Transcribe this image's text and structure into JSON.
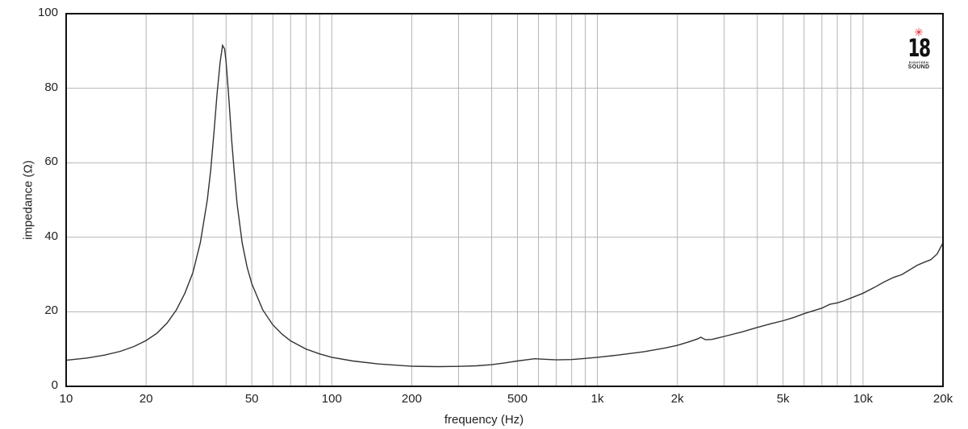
{
  "chart_data": {
    "type": "line",
    "title": "",
    "xlabel": "frequency (Hz)",
    "ylabel": "impedance (Ω)",
    "xscale": "log",
    "xlim": [
      10,
      20000
    ],
    "ylim": [
      0,
      100
    ],
    "grid": true,
    "legend": null,
    "x_ticks": [
      {
        "value": 10,
        "label": "10"
      },
      {
        "value": 20,
        "label": "20"
      },
      {
        "value": 50,
        "label": "50"
      },
      {
        "value": 100,
        "label": "100"
      },
      {
        "value": 200,
        "label": "200"
      },
      {
        "value": 500,
        "label": "500"
      },
      {
        "value": 1000,
        "label": "1k"
      },
      {
        "value": 2000,
        "label": "2k"
      },
      {
        "value": 5000,
        "label": "5k"
      },
      {
        "value": 10000,
        "label": "10k"
      },
      {
        "value": 20000,
        "label": "20k"
      }
    ],
    "x_minor_gridlines": [
      30,
      40,
      60,
      70,
      80,
      90,
      300,
      400,
      600,
      700,
      800,
      900,
      3000,
      4000,
      6000,
      7000,
      8000,
      9000
    ],
    "y_ticks": [
      {
        "value": 0,
        "label": "0"
      },
      {
        "value": 20,
        "label": "20"
      },
      {
        "value": 40,
        "label": "40"
      },
      {
        "value": 60,
        "label": "60"
      },
      {
        "value": 80,
        "label": "80"
      },
      {
        "value": 100,
        "label": "100"
      }
    ],
    "series": [
      {
        "name": "impedance",
        "color": "#333333",
        "x": [
          10,
          12,
          14,
          16,
          18,
          20,
          22,
          24,
          26,
          28,
          30,
          32,
          34,
          35,
          36,
          37,
          38,
          38.8,
          39.5,
          40,
          41,
          42,
          43,
          44,
          46,
          48,
          50,
          55,
          60,
          65,
          70,
          80,
          90,
          100,
          120,
          150,
          200,
          250,
          300,
          350,
          400,
          450,
          500,
          550,
          580,
          620,
          700,
          800,
          900,
          1000,
          1200,
          1500,
          1800,
          2000,
          2200,
          2400,
          2450,
          2550,
          2700,
          3000,
          3500,
          4000,
          4500,
          5000,
          5500,
          6000,
          7000,
          7500,
          8000,
          8500,
          9000,
          10000,
          11000,
          12000,
          13000,
          14000,
          15000,
          16000,
          17000,
          18000,
          19000,
          20000
        ],
        "values": [
          7.0,
          7.6,
          8.4,
          9.4,
          10.7,
          12.3,
          14.3,
          17.0,
          20.5,
          25.0,
          30.5,
          38.5,
          50.0,
          58.0,
          68.0,
          78.5,
          87.0,
          91.5,
          90.5,
          87.0,
          77.0,
          66.0,
          57.0,
          49.0,
          38.5,
          32.0,
          27.5,
          20.5,
          16.5,
          14.0,
          12.2,
          10.0,
          8.7,
          7.8,
          6.8,
          6.0,
          5.4,
          5.3,
          5.35,
          5.5,
          5.8,
          6.3,
          6.8,
          7.2,
          7.4,
          7.3,
          7.1,
          7.2,
          7.5,
          7.8,
          8.4,
          9.3,
          10.3,
          11.0,
          11.9,
          12.8,
          13.2,
          12.5,
          12.6,
          13.4,
          14.6,
          15.8,
          16.8,
          17.6,
          18.5,
          19.5,
          21.0,
          22.0,
          22.4,
          23.0,
          23.7,
          25.0,
          26.5,
          28.0,
          29.2,
          30.0,
          31.3,
          32.5,
          33.3,
          34.0,
          35.5,
          38.5
        ]
      }
    ]
  },
  "logo": {
    "mark": "✳",
    "number": "18",
    "line1": "EIGHTEEN",
    "line2": "SOUND"
  },
  "colors": {
    "curve": "#333333",
    "grid": "#b4b4b4",
    "axis": "#111111",
    "logo_accent": "#e4202a"
  }
}
